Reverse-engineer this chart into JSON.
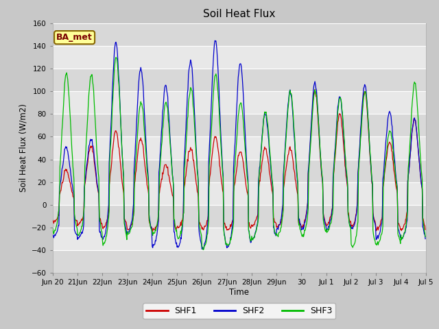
{
  "title": "Soil Heat Flux",
  "ylabel": "Soil Heat Flux (W/m2)",
  "xlabel": "Time",
  "ylim": [
    -60,
    160
  ],
  "yticks": [
    -60,
    -40,
    -20,
    0,
    20,
    40,
    60,
    80,
    100,
    120,
    140,
    160
  ],
  "fig_bg_color": "#c8c8c8",
  "plot_bg_color": "#e8e8e8",
  "band_colors": [
    "#d8d8d8",
    "#e8e8e8"
  ],
  "grid_color": "#ffffff",
  "shf1_color": "#cc0000",
  "shf2_color": "#0000cc",
  "shf3_color": "#00bb00",
  "legend_labels": [
    "SHF1",
    "SHF2",
    "SHF3"
  ],
  "annotation_text": "BA_met",
  "annotation_bg": "#ffff99",
  "annotation_border": "#886600",
  "n_days": 15,
  "dt_hours": 0.5,
  "tick_labels": [
    "Jun 20",
    "21Jun",
    "22Jun",
    "23Jun",
    "24Jun",
    "25Jun",
    "26Jun",
    "27Jun",
    "28Jun",
    "29Jun",
    "30",
    "Jul 1",
    "Jul 2",
    "Jul 3",
    "Jul 4",
    "Jul 5"
  ]
}
